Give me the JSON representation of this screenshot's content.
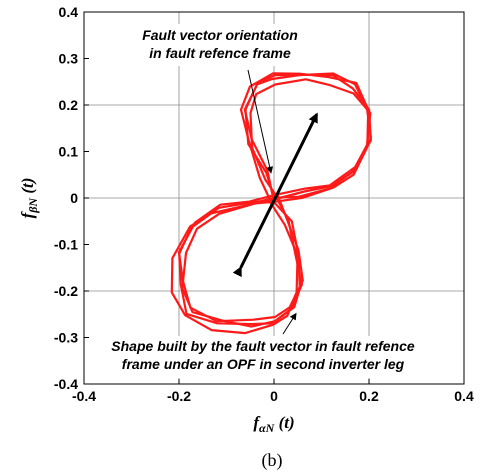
{
  "chart_data": {
    "type": "line",
    "title": "",
    "xlabel": "f",
    "xlabel_sub": "αN",
    "xlabel_suffix": " (t)",
    "ylabel": "f",
    "ylabel_sub": "βN",
    "ylabel_suffix": " (t)",
    "xlim": [
      -0.4,
      0.4
    ],
    "ylim": [
      -0.4,
      0.4
    ],
    "xticks": [
      "-0.4",
      "-0.2",
      "0",
      "0.2",
      "0.4"
    ],
    "yticks": [
      "0.4",
      "0.3",
      "0.2",
      "0.1",
      "0",
      "-0.1",
      "-0.2",
      "-0.3",
      "-0.4"
    ],
    "grid": true,
    "series_color": "#ff1a1a",
    "series": [
      {
        "points": [
          [
            0,
            0
          ],
          [
            -0.02,
            0.05
          ],
          [
            -0.05,
            0.12
          ],
          [
            -0.06,
            0.19
          ],
          [
            -0.04,
            0.24
          ],
          [
            0.0,
            0.26
          ],
          [
            0.06,
            0.265
          ],
          [
            0.12,
            0.26
          ],
          [
            0.17,
            0.24
          ],
          [
            0.2,
            0.19
          ],
          [
            0.2,
            0.12
          ],
          [
            0.17,
            0.06
          ],
          [
            0.12,
            0.025
          ],
          [
            0.06,
            0.01
          ],
          [
            0,
            0
          ],
          [
            -0.05,
            -0.01
          ],
          [
            -0.12,
            -0.025
          ],
          [
            -0.17,
            -0.06
          ],
          [
            -0.2,
            -0.12
          ],
          [
            -0.2,
            -0.19
          ],
          [
            -0.18,
            -0.245
          ],
          [
            -0.12,
            -0.27
          ],
          [
            -0.05,
            -0.275
          ],
          [
            0.0,
            -0.265
          ],
          [
            0.035,
            -0.24
          ],
          [
            0.055,
            -0.19
          ],
          [
            0.05,
            -0.12
          ],
          [
            0.03,
            -0.05
          ],
          [
            0,
            0
          ]
        ]
      }
    ],
    "arrow": {
      "from": [
        -0.07,
        -0.15
      ],
      "to": [
        0.09,
        0.18
      ],
      "color": "#000000"
    },
    "annotations": [
      {
        "lines": [
          "Fault vector orientation",
          "in fault refence frame"
        ],
        "points_to": [
          0.0,
          0.05
        ]
      },
      {
        "lines": [
          "Shape built by the fault vector in fault refence",
          "frame under an OPF in second inverter leg"
        ],
        "points_to": [
          0.04,
          -0.24
        ]
      }
    ],
    "caption": "(b)"
  }
}
